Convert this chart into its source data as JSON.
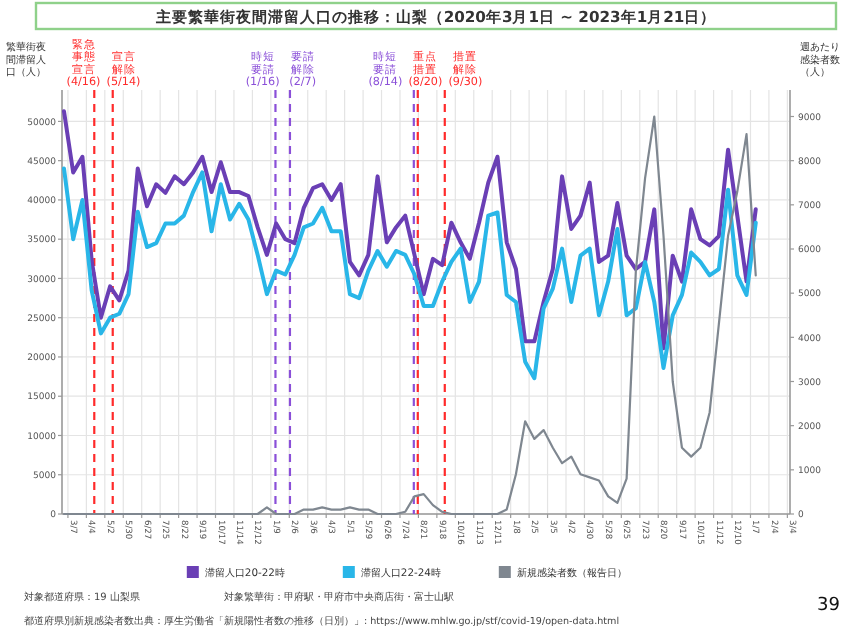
{
  "chart_data": {
    "type": "line",
    "title": "主要繁華街夜間滞留人口の推移：山梨（2020年3月1日 ~ 2023年1月21日）",
    "ylabel": "繁華街夜間滞留人口（人）",
    "y2label": "週あたり感染者数（人）",
    "x": [
      "2020-03-01",
      "2020-03-15",
      "2020-03-29",
      "2020-04-12",
      "2020-04-26",
      "2020-05-10",
      "2020-05-24",
      "2020-06-07",
      "2020-06-21",
      "2020-07-05",
      "2020-07-19",
      "2020-08-02",
      "2020-08-16",
      "2020-08-30",
      "2020-09-13",
      "2020-09-27",
      "2020-10-11",
      "2020-10-25",
      "2020-11-08",
      "2020-11-22",
      "2020-12-06",
      "2020-12-20",
      "2021-01-03",
      "2021-01-17",
      "2021-01-31",
      "2021-02-14",
      "2021-02-28",
      "2021-03-14",
      "2021-03-28",
      "2021-04-11",
      "2021-04-25",
      "2021-05-09",
      "2021-05-23",
      "2021-06-06",
      "2021-06-20",
      "2021-07-04",
      "2021-07-18",
      "2021-08-01",
      "2021-08-15",
      "2021-08-29",
      "2021-09-12",
      "2021-09-26",
      "2021-10-10",
      "2021-10-24",
      "2021-11-07",
      "2021-11-21",
      "2021-12-05",
      "2021-12-19",
      "2022-01-02",
      "2022-01-16",
      "2022-01-30",
      "2022-02-13",
      "2022-02-27",
      "2022-03-13",
      "2022-03-27",
      "2022-04-10",
      "2022-04-24",
      "2022-05-08",
      "2022-05-22",
      "2022-06-05",
      "2022-06-19",
      "2022-07-03",
      "2022-07-17",
      "2022-07-31",
      "2022-08-14",
      "2022-08-28",
      "2022-09-11",
      "2022-09-25",
      "2022-10-09",
      "2022-10-23",
      "2022-11-06",
      "2022-11-20",
      "2022-12-04",
      "2022-12-18",
      "2023-01-01",
      "2023-01-15"
    ],
    "series": [
      {
        "name": "滞留人口20-22時",
        "color": "#6a3fb5",
        "values": [
          51300,
          43500,
          45500,
          32300,
          25000,
          29000,
          27200,
          31000,
          44000,
          39200,
          42000,
          40900,
          43000,
          42000,
          43500,
          45500,
          41000,
          44800,
          41000,
          41000,
          40500,
          36500,
          33000,
          37000,
          35000,
          34500,
          39000,
          41500,
          42000,
          40000,
          42000,
          32100,
          30400,
          33000,
          43000,
          34600,
          36500,
          38000,
          33000,
          28000,
          32500,
          31700,
          37100,
          34600,
          32500,
          37100,
          42200,
          45500,
          34600,
          31200,
          22000,
          22000,
          27000,
          31200,
          43000,
          36300,
          38000,
          42200,
          32100,
          32900,
          39600,
          32900,
          31200,
          32100,
          38800,
          21100,
          32900,
          29600,
          38800,
          35000,
          34200,
          35400,
          46400,
          38000,
          29600,
          38800
        ]
      },
      {
        "name": "滞留人口22-24時",
        "color": "#29b6e8",
        "values": [
          44000,
          35000,
          40000,
          28500,
          23000,
          25000,
          25500,
          28000,
          38500,
          34000,
          34500,
          37000,
          37000,
          38000,
          41000,
          43500,
          36000,
          42000,
          37500,
          39500,
          37500,
          33000,
          28000,
          31000,
          30500,
          33000,
          36500,
          37000,
          39000,
          36000,
          36000,
          28000,
          27500,
          31000,
          33500,
          31500,
          33500,
          33000,
          30500,
          26500,
          26500,
          29600,
          32100,
          33800,
          27000,
          29600,
          38000,
          38400,
          27900,
          27000,
          19400,
          17300,
          26200,
          28700,
          33800,
          27000,
          32900,
          33800,
          25300,
          29600,
          36300,
          25300,
          26200,
          32100,
          27000,
          18600,
          25300,
          27900,
          33300,
          32100,
          30400,
          31200,
          41300,
          30400,
          27900,
          37100
        ]
      },
      {
        "name": "新規感染者数（報告日）",
        "color": "#7f8790",
        "axis": "y2",
        "values": [
          0,
          0,
          0,
          0,
          0,
          0,
          0,
          0,
          0,
          0,
          0,
          0,
          0,
          0,
          0,
          0,
          0,
          0,
          0,
          0,
          0,
          0,
          150,
          0,
          0,
          0,
          100,
          100,
          150,
          100,
          100,
          150,
          100,
          100,
          0,
          0,
          0,
          50,
          400,
          450,
          200,
          50,
          0,
          0,
          0,
          0,
          0,
          0,
          100,
          900,
          2100,
          1700,
          1900,
          1500,
          1150,
          1300,
          900,
          830,
          760,
          400,
          250,
          800,
          5500,
          7600,
          9000,
          6300,
          3000,
          1500,
          1300,
          1500,
          2300,
          4300,
          6300,
          7300,
          8600,
          5400
        ]
      }
    ],
    "xlim": [
      "2020-02-27",
      "2023-03-08"
    ],
    "xticks": [
      {
        "value": "2020-03-07",
        "label": "3/7"
      },
      {
        "value": "2020-04-04",
        "label": "4/4"
      },
      {
        "value": "2020-05-02",
        "label": "5/2"
      },
      {
        "value": "2020-05-30",
        "label": "5/30"
      },
      {
        "value": "2020-06-27",
        "label": "6/27"
      },
      {
        "value": "2020-07-25",
        "label": "7/25"
      },
      {
        "value": "2020-08-22",
        "label": "8/22"
      },
      {
        "value": "2020-09-19",
        "label": "9/19"
      },
      {
        "value": "2020-10-17",
        "label": "10/17"
      },
      {
        "value": "2020-11-14",
        "label": "11/14"
      },
      {
        "value": "2020-12-12",
        "label": "12/12"
      },
      {
        "value": "2021-01-09",
        "label": "1/9"
      },
      {
        "value": "2021-02-06",
        "label": "2/6"
      },
      {
        "value": "2021-03-06",
        "label": "3/6"
      },
      {
        "value": "2021-04-03",
        "label": "4/3"
      },
      {
        "value": "2021-05-01",
        "label": "5/1"
      },
      {
        "value": "2021-05-29",
        "label": "5/29"
      },
      {
        "value": "2021-06-26",
        "label": "6/26"
      },
      {
        "value": "2021-07-24",
        "label": "7/24"
      },
      {
        "value": "2021-08-21",
        "label": "8/21"
      },
      {
        "value": "2021-09-18",
        "label": "9/18"
      },
      {
        "value": "2021-10-16",
        "label": "10/16"
      },
      {
        "value": "2021-11-13",
        "label": "11/13"
      },
      {
        "value": "2021-12-11",
        "label": "12/11"
      },
      {
        "value": "2022-01-08",
        "label": "1/8"
      },
      {
        "value": "2022-02-05",
        "label": "2/5"
      },
      {
        "value": "2022-03-05",
        "label": "3/5"
      },
      {
        "value": "2022-04-02",
        "label": "4/2"
      },
      {
        "value": "2022-04-30",
        "label": "4/30"
      },
      {
        "value": "2022-05-28",
        "label": "5/28"
      },
      {
        "value": "2022-06-25",
        "label": "6/25"
      },
      {
        "value": "2022-07-23",
        "label": "7/23"
      },
      {
        "value": "2022-08-20",
        "label": "8/20"
      },
      {
        "value": "2022-09-17",
        "label": "9/17"
      },
      {
        "value": "2022-10-15",
        "label": "10/15"
      },
      {
        "value": "2022-11-12",
        "label": "11/12"
      },
      {
        "value": "2022-12-10",
        "label": "12/10"
      },
      {
        "value": "2023-01-07",
        "label": "1/7"
      },
      {
        "value": "2023-02-04",
        "label": "2/4"
      },
      {
        "value": "2023-03-04",
        "label": "3/4"
      }
    ],
    "ylim": [
      0,
      54000
    ],
    "yticks": [
      0,
      5000,
      10000,
      15000,
      20000,
      25000,
      30000,
      35000,
      40000,
      45000,
      50000
    ],
    "y2lim": [
      0,
      9600
    ],
    "y2ticks": [
      0,
      1000,
      2000,
      3000,
      4000,
      5000,
      6000,
      7000,
      8000,
      9000
    ],
    "ref_lines": [
      {
        "axis": "x",
        "value": "2020-04-16",
        "label": "緊急事態宣言(4/16)",
        "color": "#ff2a2a",
        "line_style": "dashed"
      },
      {
        "axis": "x",
        "value": "2020-05-14",
        "label": "宣言解除(5/14)",
        "color": "#ff2a2a",
        "line_style": "dashed"
      },
      {
        "axis": "x",
        "value": "2021-01-16",
        "label": "時短要請(1/16)",
        "color": "#8a4fd8",
        "line_style": "dashed"
      },
      {
        "axis": "x",
        "value": "2021-02-07",
        "label": "要請解除(2/7)",
        "color": "#8a4fd8",
        "line_style": "dashed"
      },
      {
        "axis": "x",
        "value": "2021-08-14",
        "label": "時短要請(8/14)",
        "color": "#8a4fd8",
        "line_style": "dashed"
      },
      {
        "axis": "x",
        "value": "2021-08-20",
        "label": "重点措置(8/20)",
        "color": "#ff2a2a",
        "line_style": "dashed"
      },
      {
        "axis": "x",
        "value": "2021-09-30",
        "label": "措置解除(9/30)",
        "color": "#ff2a2a",
        "line_style": "dashed"
      }
    ],
    "annotations": [
      "対象都道府県：19 山梨県",
      "対象繁華街：甲府駅・甲府市中央商店街・富士山駅",
      "都道府県別新規感染者数出典：厚生労働省「新規陽性者数の推移（日別）」: https://www.mhlw.go.jp/stf/covid-19/open-data.html",
      "39"
    ],
    "grid": true,
    "legend": "bottom",
    "marker": "none",
    "line_style": "solid"
  }
}
